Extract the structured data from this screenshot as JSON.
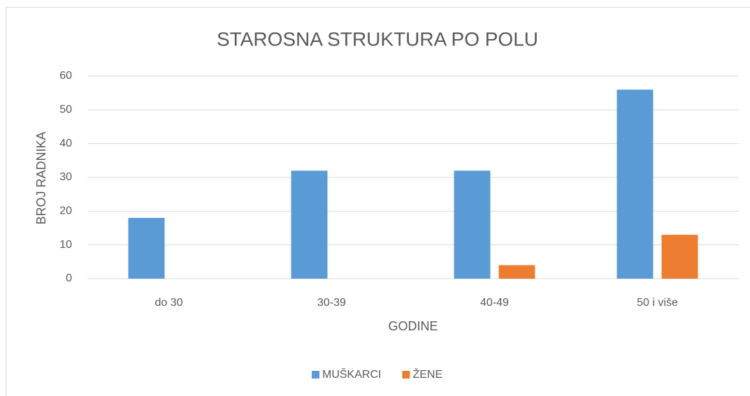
{
  "chart_data": {
    "type": "bar",
    "title": "STAROSNA STRUKTURA PO POLU",
    "x_label": "GODINE",
    "y_label": "BROJ RADNIKA",
    "categories": [
      "do 30",
      "30-39",
      "40-49",
      "50 i više"
    ],
    "series": [
      {
        "name": "MUŠKARCI",
        "color": "#5b9bd5",
        "values": [
          18,
          32,
          32,
          56
        ]
      },
      {
        "name": "ŽENE",
        "color": "#ed7d31",
        "values": [
          0,
          0,
          4,
          13
        ]
      }
    ],
    "ylim": [
      0,
      60
    ],
    "yticks": [
      0,
      10,
      20,
      30,
      40,
      50,
      60
    ],
    "grid": true,
    "legend": "bottom"
  }
}
